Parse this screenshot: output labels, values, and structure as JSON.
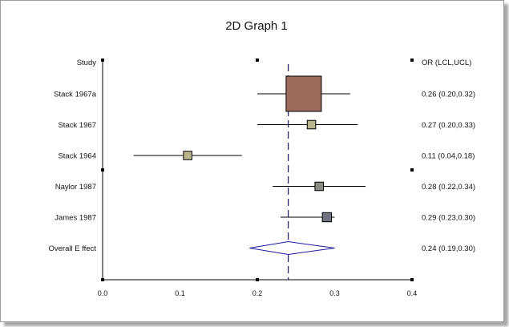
{
  "chart_data": {
    "type": "forest",
    "title": "2D Graph 1",
    "left_header": "Study",
    "right_header": "OR (LCL,UCL)",
    "x_ticks": [
      "0.0",
      "0.1",
      "0.2",
      "0.3",
      "0.4"
    ],
    "xlim": [
      0.0,
      0.4
    ],
    "reference_line": 0.24,
    "grid": false,
    "studies": [
      {
        "label": "Stack 1967a",
        "or": 0.26,
        "lcl": 0.2,
        "ucl": 0.32,
        "text": "0.26 (0.20,0.32)",
        "weight": 1.0,
        "color": "#9c6b5c"
      },
      {
        "label": "Stack 1967",
        "or": 0.27,
        "lcl": 0.2,
        "ucl": 0.33,
        "text": "0.27 (0.20,0.33)",
        "weight": 0.24,
        "color": "#b9b48a"
      },
      {
        "label": "Stack 1964",
        "or": 0.11,
        "lcl": 0.04,
        "ucl": 0.18,
        "text": "0.11 (0.04,0.18)",
        "weight": 0.24,
        "color": "#b9b48a"
      },
      {
        "label": "Naylor 1987",
        "or": 0.28,
        "lcl": 0.22,
        "ucl": 0.34,
        "text": "0.28 (0.22,0.34)",
        "weight": 0.24,
        "color": "#8c8c84"
      },
      {
        "label": "James 1987",
        "or": 0.29,
        "lcl": 0.23,
        "ucl": 0.3,
        "text": "0.29 (0.23,0.30)",
        "weight": 0.26,
        "color": "#707482"
      }
    ],
    "overall": {
      "label": "Overall E ffect",
      "or": 0.24,
      "lcl": 0.19,
      "ucl": 0.3,
      "text": "0.24 (0.19,0.30)",
      "color": "#1a1aa0"
    }
  }
}
